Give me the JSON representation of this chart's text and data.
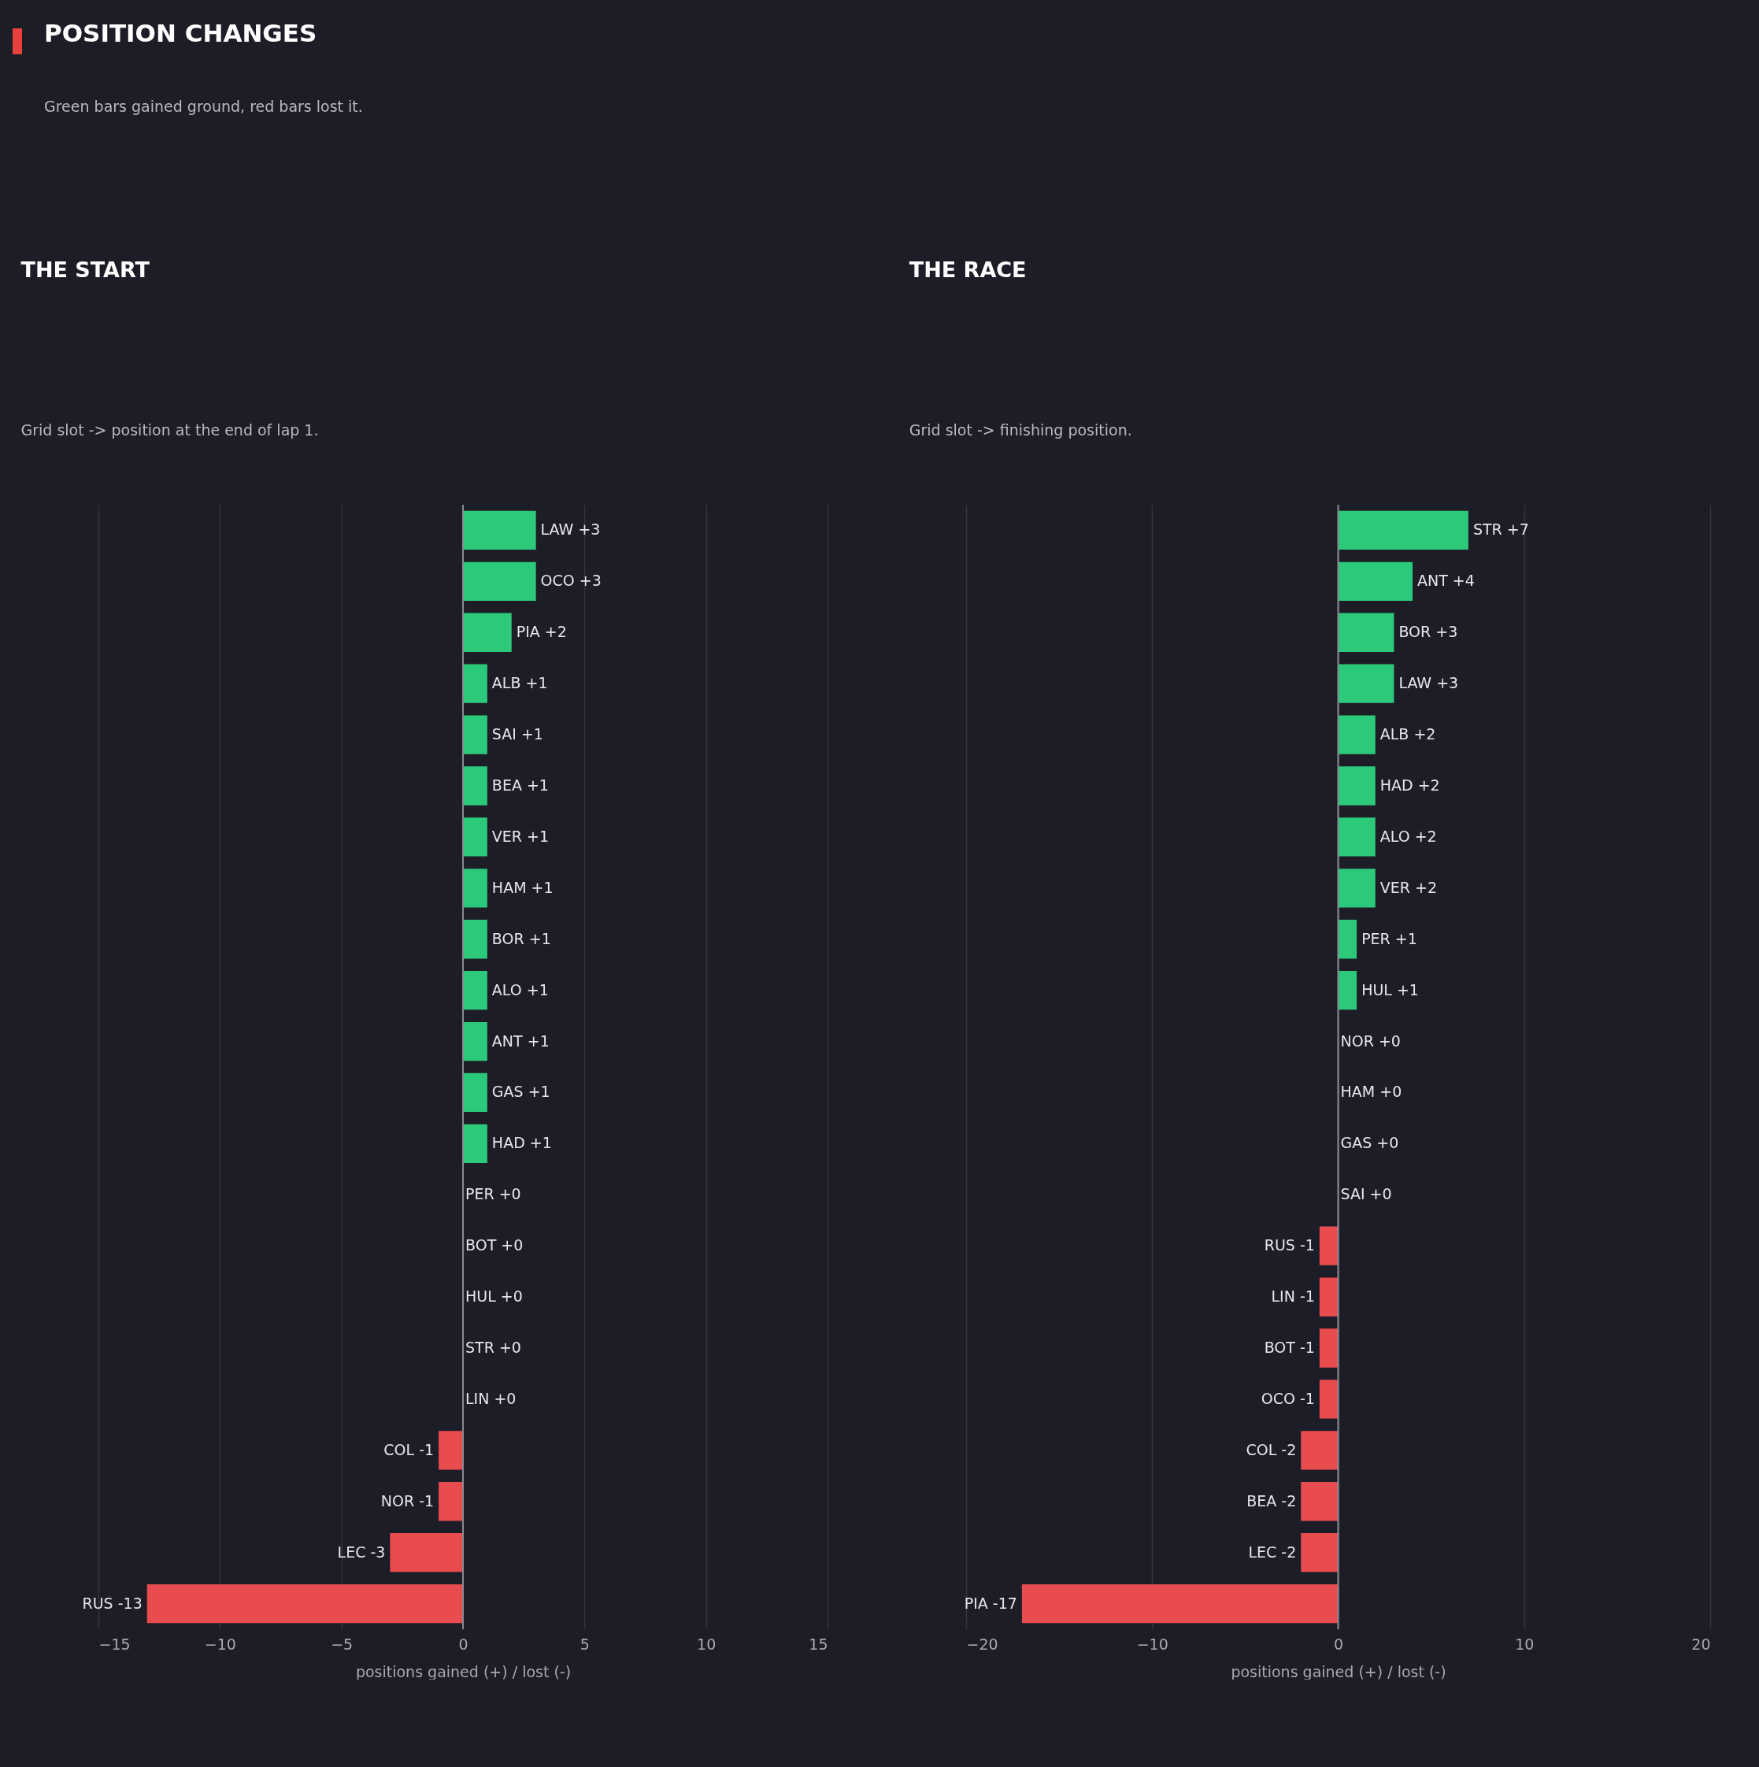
{
  "chart_data": [
    {
      "type": "bar",
      "orientation": "horizontal",
      "title": "THE START",
      "subtitle": "Grid slot -> position at the end of lap 1.",
      "annotations": [
        "POSITION CHANGES",
        "Green bars gained ground, red bars lost it."
      ],
      "xlabel": "positions gained (+) / lost (-)",
      "categories": [
        "LAW",
        "OCO",
        "PIA",
        "ALB",
        "SAI",
        "BEA",
        "VER",
        "HAM",
        "BOR",
        "ALO",
        "ANT",
        "GAS",
        "HAD",
        "PER",
        "BOT",
        "HUL",
        "STR",
        "LIN",
        "COL",
        "NOR",
        "LEC",
        "RUS"
      ],
      "values": [
        3,
        3,
        2,
        1,
        1,
        1,
        1,
        1,
        1,
        1,
        1,
        1,
        1,
        0,
        0,
        0,
        0,
        0,
        -1,
        -1,
        -3,
        -13
      ],
      "value_labels": [
        "+3",
        "+3",
        "+2",
        "+1",
        "+1",
        "+1",
        "+1",
        "+1",
        "+1",
        "+1",
        "+1",
        "+1",
        "+1",
        "+0",
        "+0",
        "+0",
        "+0",
        "+0",
        "-1",
        "-1",
        "-3",
        "-13"
      ],
      "colors": [
        "#2dc97a",
        "#2dc97a",
        "#2dc97a",
        "#2dc97a",
        "#2dc97a",
        "#2dc97a",
        "#2dc97a",
        "#2dc97a",
        "#2dc97a",
        "#2dc97a",
        "#2dc97a",
        "#2dc97a",
        "#2dc97a",
        "#2dc97a",
        "#2dc97a",
        "#2dc97a",
        "#2dc97a",
        "#2dc97a",
        "#e84c4f",
        "#e84c4f",
        "#e84c4f",
        "#e84c4f"
      ],
      "xlim": [
        -15,
        15
      ],
      "xticks": [
        -15,
        -10,
        -5,
        0,
        5,
        10,
        15
      ],
      "grid": "x",
      "tick_labels": "x",
      "ref_lines": [
        {
          "axis": "x",
          "value": 0,
          "color": "#8a8a92"
        }
      ]
    },
    {
      "type": "bar",
      "orientation": "horizontal",
      "title": "THE RACE",
      "subtitle": "Grid slot -> finishing position.",
      "xlabel": "positions gained (+) / lost (-)",
      "categories": [
        "STR",
        "ANT",
        "BOR",
        "LAW",
        "ALB",
        "HAD",
        "ALO",
        "VER",
        "PER",
        "HUL",
        "NOR",
        "HAM",
        "GAS",
        "SAI",
        "RUS",
        "LIN",
        "BOT",
        "OCO",
        "COL",
        "BEA",
        "LEC",
        "PIA"
      ],
      "values": [
        7,
        4,
        3,
        3,
        2,
        2,
        2,
        2,
        1,
        1,
        0,
        0,
        0,
        0,
        -1,
        -1,
        -1,
        -1,
        -2,
        -2,
        -2,
        -17
      ],
      "value_labels": [
        "+7",
        "+4",
        "+3",
        "+3",
        "+2",
        "+2",
        "+2",
        "+2",
        "+1",
        "+1",
        "+0",
        "+0",
        "+0",
        "+0",
        "-1",
        "-1",
        "-1",
        "-1",
        "-2",
        "-2",
        "-2",
        "-17"
      ],
      "colors": [
        "#2dc97a",
        "#2dc97a",
        "#2dc97a",
        "#2dc97a",
        "#2dc97a",
        "#2dc97a",
        "#2dc97a",
        "#2dc97a",
        "#2dc97a",
        "#2dc97a",
        "#2dc97a",
        "#2dc97a",
        "#2dc97a",
        "#2dc97a",
        "#e84c4f",
        "#e84c4f",
        "#e84c4f",
        "#e84c4f",
        "#e84c4f",
        "#e84c4f",
        "#e84c4f",
        "#e84c4f"
      ],
      "xlim": [
        -20,
        20
      ],
      "xticks": [
        -20,
        -10,
        0,
        10,
        20
      ],
      "grid": "x",
      "tick_labels": "x",
      "ref_lines": [
        {
          "axis": "x",
          "value": 0,
          "color": "#8a8a92"
        }
      ]
    }
  ]
}
